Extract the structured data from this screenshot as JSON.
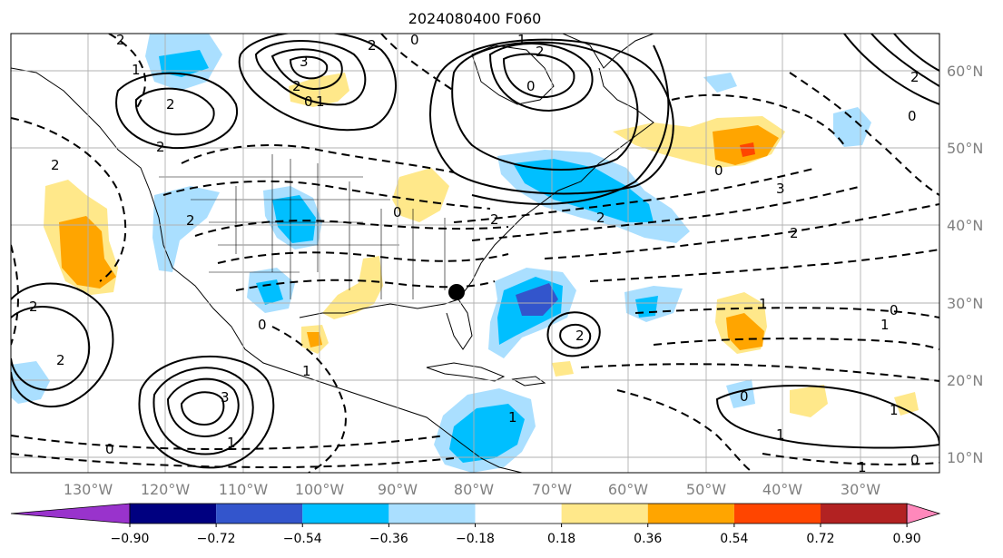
{
  "title": "2024080400 F060",
  "map": {
    "lon_labels": [
      "130°W",
      "120°W",
      "110°W",
      "100°W",
      "90°W",
      "80°W",
      "70°W",
      "60°W",
      "50°W",
      "40°W",
      "30°W"
    ],
    "lat_labels": [
      "60°N",
      "50°N",
      "40°N",
      "30°N",
      "20°N",
      "10°N"
    ],
    "contour_labels": [
      "2",
      "0",
      "2",
      "1",
      "3",
      "2",
      "0",
      "1",
      "2",
      "1",
      "0",
      "2",
      "2",
      "2",
      "2",
      "2",
      "0",
      "2",
      "0",
      "2",
      "3",
      "2",
      "1",
      "0",
      "1",
      "2",
      "2",
      "1",
      "0",
      "1",
      "0",
      "0",
      "3",
      "1",
      "2",
      "0",
      "1",
      "1",
      "1",
      "0"
    ],
    "colors": {
      "ocean": "#ffffff",
      "contour": "#000000",
      "grid": "#b0b0b0",
      "marker": "#000000"
    }
  },
  "colorbar": {
    "tick_labels": [
      "−0.90",
      "−0.72",
      "−0.54",
      "−0.36",
      "−0.18",
      "0.18",
      "0.36",
      "0.54",
      "0.72",
      "0.90"
    ],
    "colors": [
      "#9933cc",
      "#000080",
      "#3355cc",
      "#00bfff",
      "#aadfff",
      "#ffffff",
      "#ffe88a",
      "#ffa500",
      "#ff4500",
      "#b22222",
      "#ff88bb"
    ]
  }
}
